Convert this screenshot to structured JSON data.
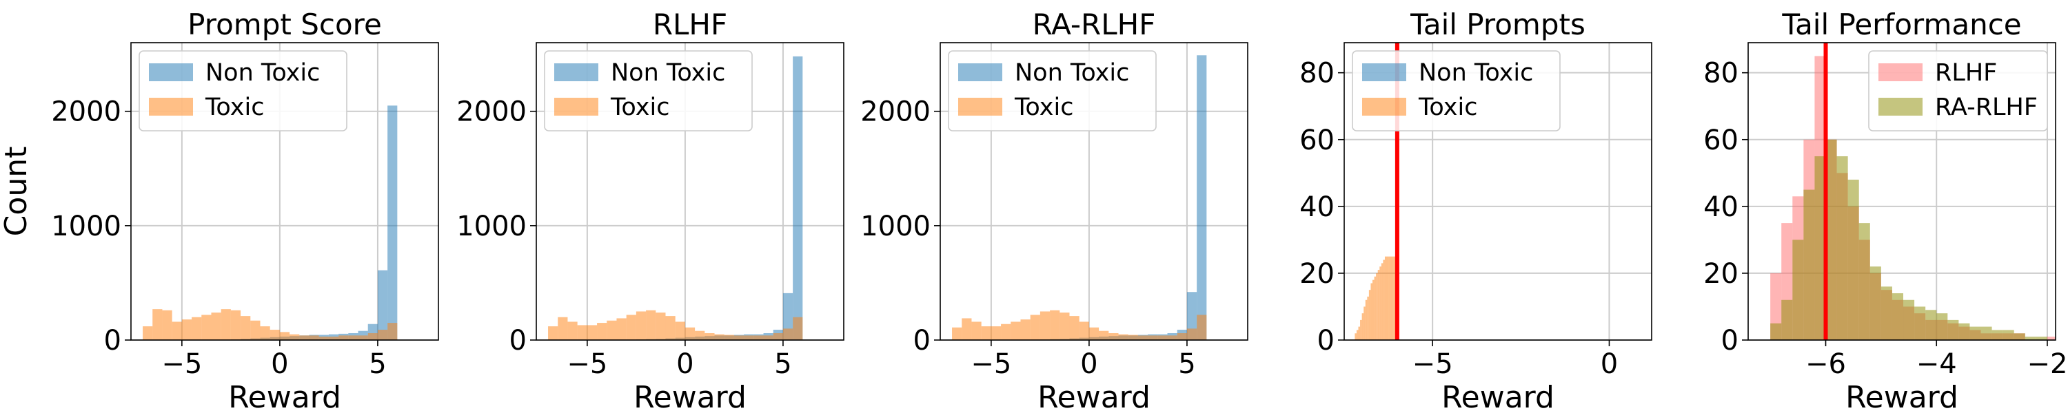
{
  "colors": {
    "non_toxic": "#1f77b4",
    "toxic": "#ff7f0e",
    "rlhf": "#ff6b6b",
    "ra_rlhf": "#8b8b00",
    "threshold": "#ff0000",
    "grid": "#cccccc"
  },
  "chart_data": [
    {
      "type": "histogram",
      "title": "Prompt Score",
      "xlabel": "Reward",
      "ylabel": "Count",
      "xlim": [
        -7.6,
        8.1
      ],
      "ylim": [
        0,
        2600
      ],
      "xticks": [
        -5,
        0,
        5
      ],
      "xtick_labels": [
        "−5",
        "0",
        "5"
      ],
      "yticks": [
        0,
        1000,
        2000
      ],
      "ytick_labels": [
        "0",
        "1000",
        "2000"
      ],
      "grid": true,
      "legend_loc": "upper-left",
      "series": [
        {
          "name": "Non Toxic",
          "color_key": "non_toxic",
          "alpha": 0.5,
          "bin_start": -7.0,
          "bin_width": 0.5,
          "counts": [
            0,
            0,
            0,
            0,
            0,
            0,
            0,
            0,
            2,
            5,
            10,
            15,
            20,
            25,
            30,
            35,
            40,
            45,
            45,
            50,
            55,
            60,
            80,
            140,
            610,
            2050
          ]
        },
        {
          "name": "Toxic",
          "color_key": "toxic",
          "alpha": 0.5,
          "bin_start": -7.0,
          "bin_width": 0.5,
          "counts": [
            120,
            270,
            260,
            160,
            180,
            200,
            220,
            240,
            270,
            260,
            210,
            170,
            120,
            90,
            70,
            50,
            40,
            40,
            30,
            30,
            40,
            40,
            40,
            60,
            90,
            150
          ]
        }
      ]
    },
    {
      "type": "histogram",
      "title": "RLHF",
      "xlabel": "Reward",
      "ylabel": "",
      "xlim": [
        -7.6,
        8.1
      ],
      "ylim": [
        0,
        2600
      ],
      "xticks": [
        -5,
        0,
        5
      ],
      "xtick_labels": [
        "−5",
        "0",
        "5"
      ],
      "yticks": [
        0,
        1000,
        2000
      ],
      "ytick_labels": [
        "0",
        "1000",
        "2000"
      ],
      "grid": true,
      "legend_loc": "upper-left",
      "series": [
        {
          "name": "Non Toxic",
          "color_key": "non_toxic",
          "alpha": 0.5,
          "bin_start": -7.0,
          "bin_width": 0.5,
          "counts": [
            0,
            0,
            0,
            0,
            0,
            0,
            0,
            0,
            2,
            5,
            8,
            10,
            15,
            20,
            25,
            30,
            35,
            40,
            40,
            45,
            50,
            50,
            60,
            90,
            410,
            2480
          ]
        },
        {
          "name": "Toxic",
          "color_key": "toxic",
          "alpha": 0.5,
          "bin_start": -7.0,
          "bin_width": 0.5,
          "counts": [
            120,
            200,
            160,
            130,
            130,
            150,
            170,
            190,
            220,
            250,
            260,
            240,
            210,
            160,
            110,
            80,
            60,
            50,
            45,
            40,
            40,
            40,
            40,
            60,
            100,
            200
          ]
        }
      ]
    },
    {
      "type": "histogram",
      "title": "RA-RLHF",
      "xlabel": "Reward",
      "ylabel": "",
      "xlim": [
        -7.6,
        8.1
      ],
      "ylim": [
        0,
        2600
      ],
      "xticks": [
        -5,
        0,
        5
      ],
      "xtick_labels": [
        "−5",
        "0",
        "5"
      ],
      "yticks": [
        0,
        1000,
        2000
      ],
      "ytick_labels": [
        "0",
        "1000",
        "2000"
      ],
      "grid": true,
      "legend_loc": "upper-left",
      "series": [
        {
          "name": "Non Toxic",
          "color_key": "non_toxic",
          "alpha": 0.5,
          "bin_start": -7.0,
          "bin_width": 0.5,
          "counts": [
            0,
            0,
            0,
            0,
            0,
            0,
            0,
            0,
            2,
            5,
            8,
            10,
            15,
            20,
            25,
            30,
            35,
            40,
            40,
            45,
            50,
            50,
            60,
            90,
            420,
            2490
          ]
        },
        {
          "name": "Toxic",
          "color_key": "toxic",
          "alpha": 0.5,
          "bin_start": -7.0,
          "bin_width": 0.5,
          "counts": [
            110,
            190,
            160,
            120,
            120,
            140,
            160,
            180,
            220,
            250,
            260,
            240,
            210,
            160,
            110,
            80,
            60,
            50,
            45,
            40,
            40,
            40,
            40,
            60,
            100,
            220
          ]
        }
      ]
    },
    {
      "type": "histogram",
      "title": "Tail Prompts",
      "xlabel": "Reward",
      "ylabel": "",
      "xlim": [
        -7.5,
        1.2
      ],
      "ylim": [
        0,
        89
      ],
      "xticks": [
        -5,
        0
      ],
      "xtick_labels": [
        "−5",
        "0"
      ],
      "yticks": [
        0,
        20,
        40,
        60,
        80
      ],
      "ytick_labels": [
        "0",
        "20",
        "40",
        "60",
        "80"
      ],
      "grid": true,
      "legend_loc": "upper-left",
      "threshold_x": -6.0,
      "series": [
        {
          "name": "Non Toxic",
          "color_key": "non_toxic",
          "alpha": 0.5,
          "bin_start": -7.2,
          "bin_width": 0.05,
          "counts": []
        },
        {
          "name": "Toxic",
          "color_key": "toxic",
          "alpha": 0.5,
          "bin_start": -7.2,
          "bin_width": 0.05,
          "counts": [
            2,
            3,
            4,
            6,
            8,
            10,
            12,
            13,
            15,
            17,
            18,
            19,
            20,
            21,
            22,
            23,
            24,
            25,
            25,
            25,
            25,
            25,
            25,
            25
          ]
        }
      ]
    },
    {
      "type": "histogram",
      "title": "Tail Performance",
      "xlabel": "Reward",
      "ylabel": "",
      "xlim": [
        -7.4,
        -1.85
      ],
      "ylim": [
        0,
        89
      ],
      "xticks": [
        -6,
        -4,
        -2
      ],
      "xtick_labels": [
        "−6",
        "−4",
        "−2"
      ],
      "yticks": [
        0,
        20,
        40,
        60,
        80
      ],
      "ytick_labels": [
        "0",
        "20",
        "40",
        "60",
        "80"
      ],
      "grid": true,
      "legend_loc": "upper-right",
      "threshold_x": -6.0,
      "series": [
        {
          "name": "RLHF",
          "color_key": "rlhf",
          "alpha": 0.5,
          "bin_start": -7.2,
          "bin_width": 0.2,
          "counts": [
            0,
            20,
            35,
            43,
            60,
            85,
            60,
            50,
            40,
            30,
            20,
            15,
            12,
            10,
            8,
            6,
            6,
            5,
            4,
            3,
            2,
            2,
            2,
            2,
            0,
            0,
            1
          ]
        },
        {
          "name": "RA-RLHF",
          "color_key": "ra_rlhf",
          "alpha": 0.5,
          "bin_start": -7.2,
          "bin_width": 0.2,
          "counts": [
            0,
            5,
            12,
            30,
            45,
            55,
            60,
            55,
            48,
            35,
            22,
            16,
            14,
            12,
            10,
            9,
            8,
            6,
            5,
            4,
            4,
            3,
            3,
            2,
            1,
            1,
            0
          ]
        }
      ]
    }
  ]
}
